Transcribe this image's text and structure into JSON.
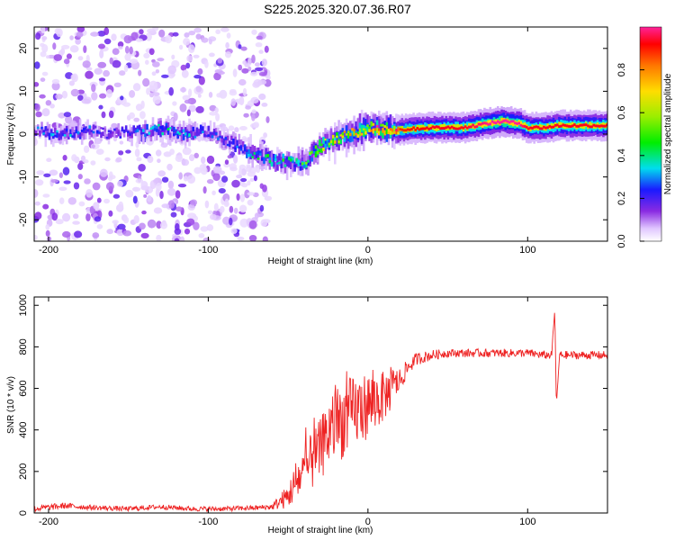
{
  "figure": {
    "title": "S225.2025.320.07.36.R07"
  },
  "chart_data": [
    {
      "type": "heatmap",
      "title": "",
      "xlabel": "Height of straight line (km)",
      "ylabel": "Frequency (Hz)",
      "xlim": [
        -209,
        150
      ],
      "ylim": [
        -25,
        25
      ],
      "xticks": [
        -200,
        -100,
        0,
        100
      ],
      "yticks": [
        -20,
        -10,
        0,
        10,
        20
      ],
      "noise_region_x": [
        -209,
        -62
      ],
      "ridge": {
        "x": [
          -205,
          -190,
          -175,
          -160,
          -145,
          -130,
          -115,
          -100,
          -90,
          -80,
          -70,
          -60,
          -50,
          -42,
          -38,
          -30,
          -20,
          -10,
          0,
          10,
          20,
          40,
          60,
          75,
          85,
          95,
          100,
          110,
          120,
          130,
          150
        ],
        "freq": [
          0.5,
          0,
          1,
          0,
          0.5,
          1,
          0,
          0.5,
          -1,
          -3,
          -5,
          -6,
          -6.5,
          -7,
          -6,
          -3,
          -1,
          0,
          1.5,
          1,
          1,
          1.5,
          1.5,
          2.5,
          3,
          2.5,
          1.5,
          1.5,
          2,
          2,
          2
        ],
        "amplitude": [
          0.2,
          0.25,
          0.2,
          0.15,
          0.2,
          0.3,
          0.25,
          0.2,
          0.2,
          0.25,
          0.3,
          0.35,
          0.35,
          0.35,
          0.4,
          0.45,
          0.5,
          0.6,
          0.7,
          0.75,
          0.8,
          0.85,
          0.85,
          0.9,
          0.95,
          0.9,
          0.85,
          0.85,
          0.85,
          0.85,
          0.85
        ]
      },
      "colorbar": {
        "label": "Normalized spectral amplitude",
        "range": [
          0,
          1
        ],
        "ticks": [
          "0.0",
          "0.2",
          "0.4",
          "0.6",
          "0.8"
        ],
        "tick_values": [
          0,
          0.2,
          0.4,
          0.6,
          0.8
        ]
      }
    },
    {
      "type": "line",
      "title": "",
      "xlabel": "Height of straight line (km)",
      "ylabel": "SNR (10 * v/v)",
      "xlim": [
        -209,
        150
      ],
      "ylim": [
        0,
        1040
      ],
      "xticks": [
        -200,
        -100,
        0,
        100
      ],
      "yticks": [
        0,
        200,
        400,
        600,
        800,
        1000
      ],
      "series": [
        {
          "name": "SNR",
          "color": "#ee2222",
          "x": [
            -209,
            -190,
            -170,
            -150,
            -130,
            -110,
            -90,
            -70,
            -60,
            -50,
            -45,
            -40,
            -35,
            -30,
            -25,
            -20,
            -15,
            -10,
            -5,
            0,
            5,
            10,
            15,
            20,
            25,
            30,
            40,
            50,
            60,
            70,
            80,
            90,
            100,
            110,
            115,
            117,
            118,
            120,
            130,
            140,
            150
          ],
          "y": [
            20,
            35,
            25,
            20,
            30,
            20,
            20,
            25,
            30,
            80,
            150,
            200,
            250,
            300,
            380,
            430,
            450,
            480,
            500,
            520,
            540,
            560,
            600,
            640,
            700,
            740,
            760,
            770,
            770,
            770,
            770,
            770,
            770,
            760,
            760,
            980,
            520,
            760,
            760,
            760,
            760
          ],
          "noise_amp": [
            15,
            15,
            12,
            12,
            12,
            12,
            12,
            12,
            15,
            60,
            100,
            120,
            140,
            150,
            170,
            180,
            190,
            180,
            170,
            160,
            150,
            120,
            100,
            60,
            40,
            30,
            25,
            20,
            20,
            20,
            20,
            20,
            20,
            20,
            20,
            0,
            0,
            20,
            20,
            20,
            20
          ]
        }
      ]
    }
  ]
}
